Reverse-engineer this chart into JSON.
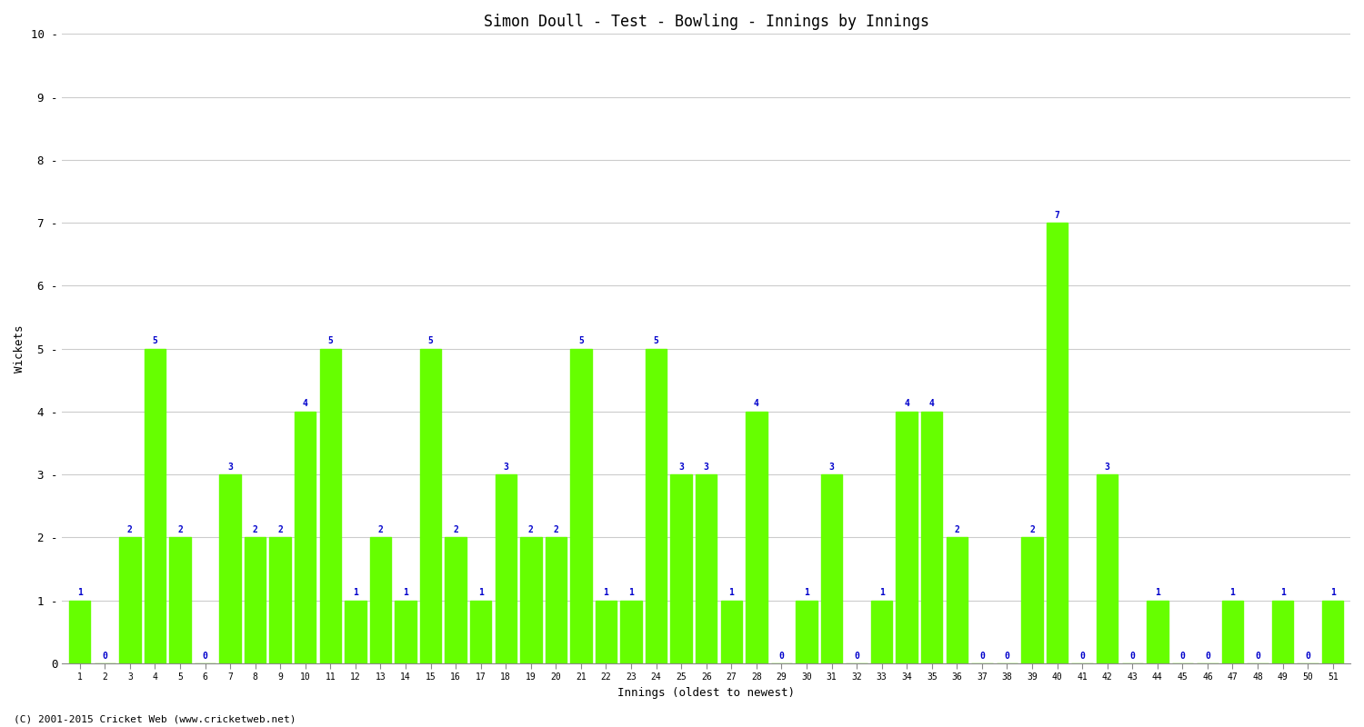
{
  "title": "Simon Doull - Test - Bowling - Innings by Innings",
  "xlabel": "Innings (oldest to newest)",
  "ylabel": "Wickets",
  "copyright": "(C) 2001-2015 Cricket Web (www.cricketweb.net)",
  "ylim": [
    0,
    10
  ],
  "yticks": [
    0,
    1,
    2,
    3,
    4,
    5,
    6,
    7,
    8,
    9,
    10
  ],
  "bar_color": "#66FF00",
  "label_color": "#0000CC",
  "bg_color": "#ffffff",
  "grid_color": "#cccccc",
  "categories": [
    "1",
    "2",
    "3",
    "4",
    "5",
    "6",
    "7",
    "8",
    "9",
    "10",
    "11",
    "12",
    "13",
    "14",
    "15",
    "16",
    "17",
    "18",
    "19",
    "20",
    "21",
    "22",
    "23",
    "24",
    "25",
    "26",
    "27",
    "28",
    "29",
    "30",
    "31",
    "32",
    "33",
    "34",
    "35",
    "36",
    "37",
    "38",
    "39",
    "40",
    "41",
    "42",
    "43",
    "44",
    "45",
    "46",
    "47",
    "48",
    "49",
    "50",
    "51"
  ],
  "values": [
    1,
    0,
    2,
    5,
    2,
    0,
    3,
    2,
    2,
    4,
    5,
    1,
    2,
    1,
    5,
    2,
    1,
    3,
    2,
    2,
    5,
    1,
    1,
    5,
    3,
    3,
    1,
    4,
    0,
    1,
    3,
    0,
    1,
    4,
    4,
    2,
    0,
    0,
    2,
    7,
    0,
    3,
    0,
    1,
    0,
    0,
    1,
    0,
    1,
    0,
    1
  ]
}
